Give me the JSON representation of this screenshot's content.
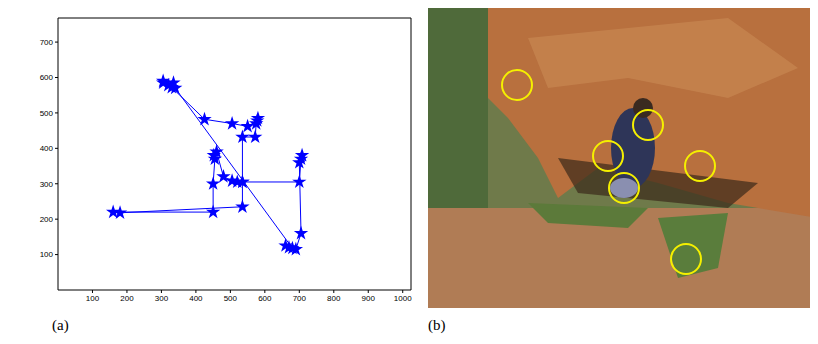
{
  "chart_data": {
    "type": "scatter",
    "x": [
      305,
      320,
      335,
      330,
      425,
      505,
      550,
      578,
      580,
      575,
      572,
      535,
      535,
      520,
      505,
      480,
      460,
      452,
      455,
      450,
      450,
      160,
      180,
      535,
      535,
      700,
      705,
      708,
      700,
      705,
      690,
      670,
      660,
      680,
      340,
      305
    ],
    "values": [
      590,
      578,
      585,
      572,
      482,
      470,
      462,
      478,
      485,
      470,
      432,
      432,
      305,
      305,
      308,
      320,
      390,
      380,
      370,
      300,
      220,
      220,
      218,
      235,
      305,
      305,
      370,
      380,
      360,
      160,
      115,
      120,
      125,
      118,
      570,
      585
    ],
    "color": "#0000ff",
    "marker": "star",
    "line_style": "solid",
    "xlim": [
      0,
      1024
    ],
    "xticks": [
      100,
      200,
      300,
      400,
      500,
      600,
      700,
      800,
      900,
      1000
    ],
    "ylim": [
      0,
      768
    ],
    "yticks": [
      100,
      200,
      300,
      400,
      500,
      600,
      700
    ]
  },
  "figure": {
    "labels": [
      "(a)",
      "(b)"
    ]
  }
}
